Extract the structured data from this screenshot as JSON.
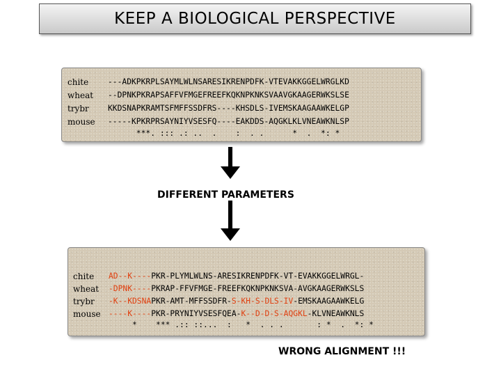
{
  "title": "KEEP A BIOLOGICAL PERSPECTIVE",
  "alignment1": {
    "rows": [
      {
        "name": "chite",
        "seq": "---ADKPKRPLSAYMLWLNSARESIKRENPDFK-VTEVAKKGGELWRGLKD"
      },
      {
        "name": "wheat",
        "seq": "--DPNKPKRAPSAFFVFMGEFREEFKQKNPKNKSVAAVGKAAGERWKSLSE"
      },
      {
        "name": "trybr",
        "seq": "KKDSNAPKRAMTSFMFFSSDFRS----KHSDLS-IVEMSKAAGAAWKELGP"
      },
      {
        "name": "mouse",
        "seq": "-----KPKRPRSAYNIYVSESFQ----EAKDDS-AQGKLKLVNEAWKNLSP"
      }
    ],
    "consensus": "      ***. ::: .: ..  .    :  . .      *  .  *: *"
  },
  "middle_label": "DIFFERENT PARAMETERS",
  "alignment2": {
    "rows": [
      {
        "name": "chite",
        "segments": [
          {
            "t": "AD--K----",
            "red": true
          },
          {
            "t": "PKR-PLYMLWLNS-ARESIKRENPDFK-VT-EVAKKGGELWRGL-",
            "red": false
          }
        ]
      },
      {
        "name": "wheat",
        "segments": [
          {
            "t": "-DPNK----",
            "red": true
          },
          {
            "t": "PKRAP-FFVFMGE-FREEFKQKNPKNKSVA-AVGKAAGERWKSLS",
            "red": false
          }
        ]
      },
      {
        "name": "trybr",
        "segments": [
          {
            "t": "-K--KDSNA",
            "red": true
          },
          {
            "t": "PKR-AMT-MFFSSDFR-",
            "red": false
          },
          {
            "t": "S-KH-S-DLS-IV",
            "red": true
          },
          {
            "t": "-EMSKAAGAAWKELG",
            "red": false
          }
        ]
      },
      {
        "name": "mouse",
        "segments": [
          {
            "t": "----K----",
            "red": true
          },
          {
            "t": "PKR-PRYNIYVSESFQEA-",
            "red": false
          },
          {
            "t": "K--D-D-S-AQGKL",
            "red": true
          },
          {
            "t": "-KLVNEAWKNLS",
            "red": false
          }
        ]
      }
    ],
    "consensus": "     *    *** .:: ::...  :   *  . . .       : *  .  *: *"
  },
  "bottom_label": "WRONG ALIGNMENT !!!"
}
